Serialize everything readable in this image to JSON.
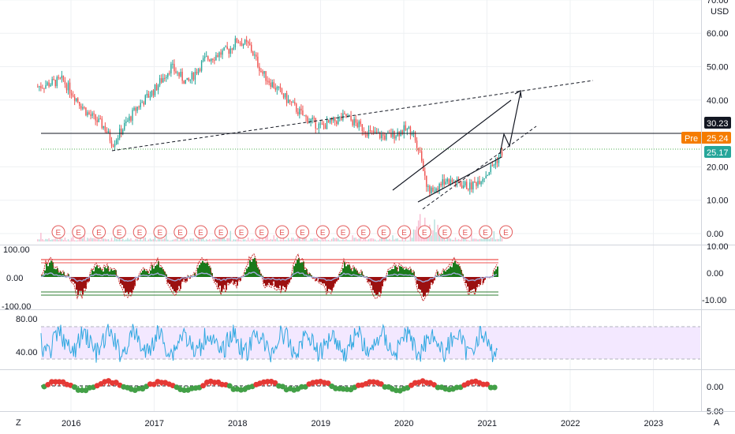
{
  "price_axis": {
    "currency": "USD",
    "ticks": [
      "70.00",
      "60.00",
      "50.00",
      "40.00",
      "20.00",
      "10.00",
      "0.00"
    ]
  },
  "price_tags": {
    "last": {
      "value": "30.23",
      "color": "#131722"
    },
    "pre_label": "Pre",
    "pre_value": "25.24",
    "pre_color": "#f57c00",
    "close": {
      "value": "25.17",
      "color": "#26a69a"
    }
  },
  "earnings_marker": "E",
  "earnings_count": 23,
  "panel1_axis": {
    "left": [
      "100.00",
      "0.00",
      "-100.00"
    ],
    "right": [
      "10.00",
      "0.00",
      "-10.00"
    ]
  },
  "panel2_axis": {
    "left": [
      "80.00",
      "40.00"
    ]
  },
  "panel3_axis": {
    "right": [
      "0.00",
      "5.00"
    ]
  },
  "time_axis": [
    "2016",
    "2017",
    "2018",
    "2019",
    "2020",
    "2021",
    "2022",
    "2023"
  ],
  "corner_left": "Z",
  "corner_right": "A",
  "colors": {
    "up": "#26a69a",
    "down": "#ef5350",
    "rsi_line": "#2fa8e0",
    "rsi_band": "#f3e8ff",
    "grid": "#eef0f3"
  },
  "chart_data": {
    "type": "line",
    "price_path": {
      "x": [
        2015.6,
        2015.9,
        2016.2,
        2016.4,
        2016.5,
        2016.8,
        2017.0,
        2017.2,
        2017.4,
        2017.6,
        2017.9,
        2018.0,
        2018.15,
        2018.3,
        2018.6,
        2018.8,
        2019.0,
        2019.3,
        2019.6,
        2019.8,
        2020.0,
        2020.1,
        2020.2,
        2020.3,
        2020.5,
        2020.8,
        2021.0,
        2021.2
      ],
      "y": [
        44,
        46,
        36,
        32,
        27,
        38,
        43,
        50,
        45,
        52,
        55,
        58,
        56,
        48,
        40,
        35,
        32,
        35,
        30,
        29,
        31,
        31,
        24,
        12,
        16,
        14,
        18,
        25
      ]
    },
    "ylim": [
      0,
      70
    ]
  }
}
